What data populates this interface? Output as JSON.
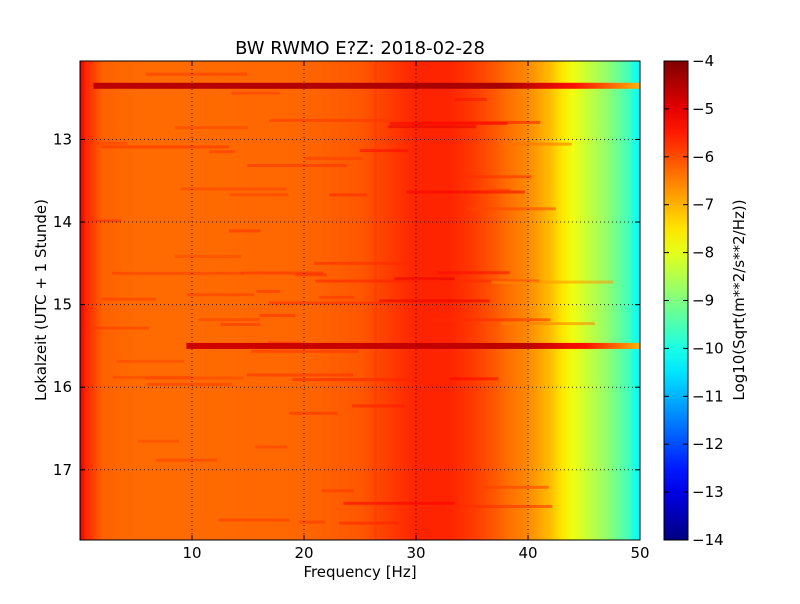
{
  "chart_data": {
    "type": "heatmap",
    "title": "BW RWMO E?Z: 2018-02-28",
    "xlabel": "Frequency [Hz]",
    "ylabel": "Lokalzeit (UTC + 1 Stunde)",
    "xlim": [
      0,
      50
    ],
    "ylim": [
      12.05,
      17.85
    ],
    "y_inverted": true,
    "grid": true,
    "x_ticks": [
      10,
      20,
      30,
      40,
      50
    ],
    "x_tick_labels": [
      "10",
      "20",
      "30",
      "40",
      "50"
    ],
    "y_ticks": [
      13,
      14,
      15,
      16,
      17
    ],
    "y_tick_labels": [
      "13",
      "14",
      "15",
      "16",
      "17"
    ],
    "colormap": "jet",
    "colorbar": {
      "label": "Log10(Sqrt(m**2/s**2/Hz))",
      "range": [
        -14,
        -4
      ],
      "ticks": [
        -4,
        -5,
        -6,
        -7,
        -8,
        -9,
        -10,
        -11,
        -12,
        -13,
        -14
      ],
      "tick_labels": [
        "−4",
        "−5",
        "−6",
        "−7",
        "−8",
        "−9",
        "−10",
        "−11",
        "−12",
        "−13",
        "−14"
      ]
    },
    "frequency_profile": {
      "frequency_hz": [
        0,
        0.5,
        2,
        5,
        10,
        20,
        25,
        28,
        30,
        33,
        35,
        37,
        38,
        40,
        42,
        43,
        44,
        45,
        46,
        47,
        48,
        49,
        49.5,
        50
      ],
      "level": [
        -4.9,
        -5.6,
        -6.2,
        -6.3,
        -6.3,
        -6.25,
        -6.1,
        -5.8,
        -5.6,
        -5.6,
        -5.8,
        -6.1,
        -6.3,
        -6.6,
        -7.1,
        -7.5,
        -7.9,
        -8.2,
        -8.5,
        -8.8,
        -9.2,
        -9.6,
        -10.0,
        -10.3
      ]
    },
    "bands": [
      {
        "time": 12.35,
        "level": -4.6,
        "f_start": 1.2,
        "f_end": 50
      },
      {
        "time": 15.5,
        "level": -4.8,
        "f_start": 9.5,
        "f_end": 50
      }
    ]
  }
}
